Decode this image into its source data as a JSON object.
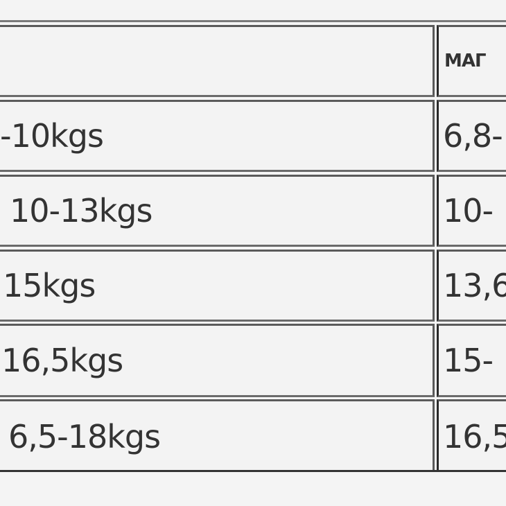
{
  "table": {
    "header": [
      "",
      "МАГ"
    ],
    "rows": [
      [
        "-10kgs",
        "6,8-"
      ],
      [
        "10-13kgs",
        "10-"
      ],
      [
        "15kgs",
        "13,6"
      ],
      [
        "16,5kgs",
        "15-"
      ],
      [
        "6,5-18kgs",
        "16,5"
      ]
    ]
  }
}
